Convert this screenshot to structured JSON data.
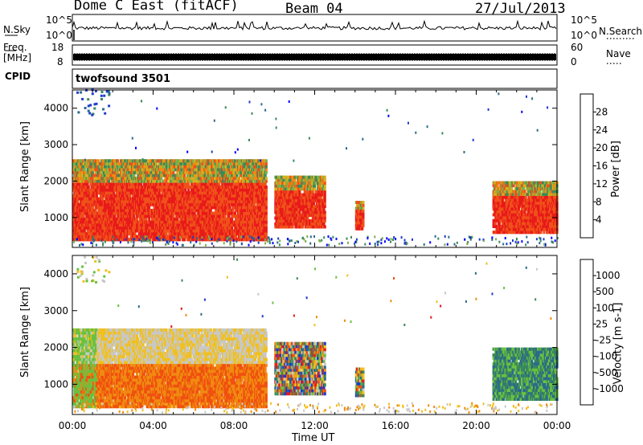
{
  "header": {
    "station": "Dome C East (fitACF)",
    "beam": "Beam 04",
    "date": "27/Jul/2013"
  },
  "side_labels": {
    "nsky": "N.Sky",
    "freq": "Freq.",
    "mhz": "[MHz]",
    "cpid": "CPID",
    "nsearch": "N.Search",
    "nave": "Nave"
  },
  "cpid_value": "twofsound 3501",
  "nsky_ticks": [
    "10^5",
    "10^0"
  ],
  "freq_ticks": [
    "18",
    "8"
  ],
  "nsearch_ticks": [
    "10^5",
    "10^0"
  ],
  "nave_ticks": [
    "60",
    "0"
  ],
  "chart_data": [
    {
      "type": "heatmap",
      "name": "power",
      "ylabel": "Slant Range [km]",
      "xlabel": "",
      "yticks": [
        1000,
        2000,
        3000,
        4000
      ],
      "ylim": [
        180,
        4500
      ],
      "xlim": [
        "00:00",
        "24:00"
      ],
      "colorbar": {
        "label": "Power [dB]",
        "ticks": [
          "4",
          "8",
          "12",
          "16",
          "20",
          "24",
          "28"
        ],
        "colors": [
          "#0000ff",
          "#1e3cc8",
          "#2a6a8c",
          "#3a8a5a",
          "#7ab04a",
          "#d4b020",
          "#f08a10",
          "#f0501a",
          "#e81a1a"
        ]
      },
      "blocks": [
        {
          "t0": 0.0,
          "t1": 9.6,
          "r0": 350,
          "r1": 2550,
          "level": "high"
        },
        {
          "t0": 10.0,
          "t1": 12.5,
          "r0": 700,
          "r1": 2100,
          "level": "high"
        },
        {
          "t0": 14.0,
          "t1": 14.4,
          "r0": 650,
          "r1": 1400,
          "level": "high"
        },
        {
          "t0": 20.8,
          "t1": 24.0,
          "r0": 550,
          "r1": 1950,
          "level": "high"
        }
      ]
    },
    {
      "type": "heatmap",
      "name": "velocity",
      "ylabel": "Slant Range [km]",
      "xlabel": "Time UT",
      "yticks": [
        1000,
        2000,
        3000,
        4000
      ],
      "ylim": [
        180,
        4500
      ],
      "xticks": [
        "00:00",
        "04:00",
        "08:00",
        "12:00",
        "16:00",
        "20:00",
        "00:00"
      ],
      "colorbar": {
        "label": "Velocity [m s-1]",
        "ticks": [
          "1000",
          "500",
          "100",
          "25",
          "-25",
          "-100",
          "-500",
          "-1000"
        ],
        "colors": [
          "#1e3cc8",
          "#2a6a8c",
          "#3a8a5a",
          "#6ac040",
          "#c8c8c8",
          "#f0c020",
          "#f08a10",
          "#f05010",
          "#e81a1a"
        ]
      },
      "blocks": [
        {
          "t0": 0.0,
          "t1": 9.6,
          "r0": 350,
          "r1": 2500,
          "level": "negative"
        },
        {
          "t0": 10.0,
          "t1": 12.5,
          "r0": 700,
          "r1": 2100,
          "level": "mixed"
        },
        {
          "t0": 14.0,
          "t1": 14.4,
          "r0": 650,
          "r1": 1400,
          "level": "mixed"
        },
        {
          "t0": 20.8,
          "t1": 24.0,
          "r0": 550,
          "r1": 1950,
          "level": "positive"
        }
      ]
    }
  ]
}
